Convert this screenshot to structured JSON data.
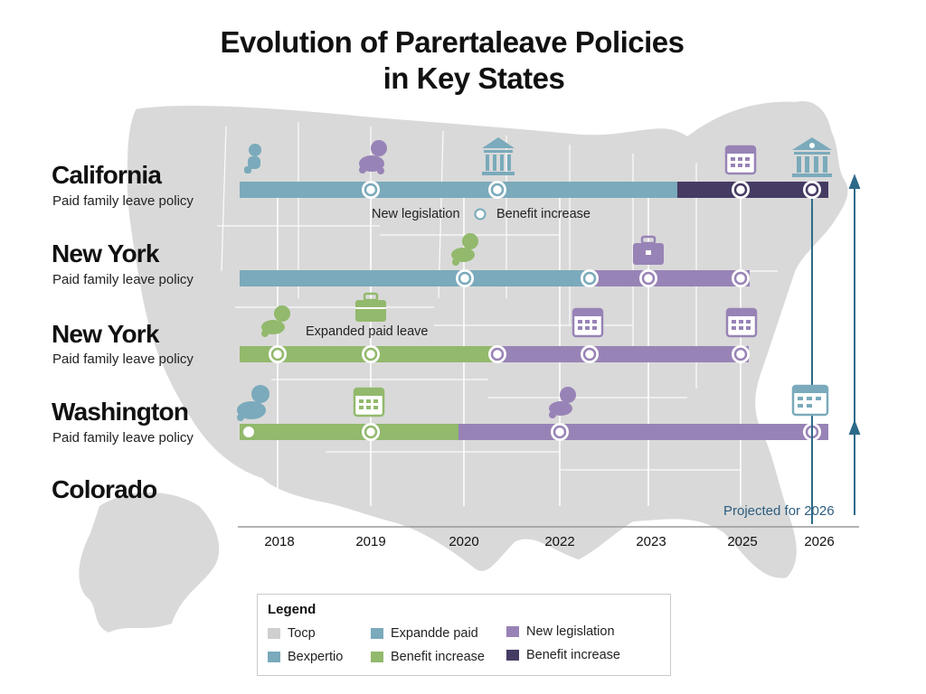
{
  "title": {
    "line1": "Evolution of Parertaleave Policies",
    "line2": "in Key States"
  },
  "states": [
    {
      "name": "California",
      "subtitle": "Paid family leave policy"
    },
    {
      "name": "New York",
      "subtitle": "Paid family leave policy"
    },
    {
      "name": "New York",
      "subtitle": "Paid family leave policy"
    },
    {
      "name": "Washington",
      "subtitle": "Paid family leave policy"
    },
    {
      "name": "Colorado"
    }
  ],
  "annotations": {
    "new_legislation": "New legislation",
    "benefit_increase": "Benefit increase",
    "expanded_paid_leave": "Expanded paid leave"
  },
  "timeline": {
    "years": [
      "2018",
      "2019",
      "2020",
      "2022",
      "2023",
      "2025",
      "2026"
    ],
    "projected_label": "Projected for 2026"
  },
  "legend": {
    "title": "Legend",
    "items": [
      {
        "label": "Tocp",
        "color": "#cfcfcf"
      },
      {
        "label": "Bexpertio",
        "color": "#7aaabb"
      },
      {
        "label": "Expandde paid",
        "color": "#7aaabb"
      },
      {
        "label": "Benefit increase",
        "color": "#92b96c"
      },
      {
        "label": "New legislation",
        "color": "#9883b6"
      },
      {
        "label": "Benefit increase",
        "color": "#463b63"
      }
    ]
  },
  "colors": {
    "teal": "#7aaabb",
    "green": "#92b96c",
    "purple": "#9883b6",
    "dark_purple": "#463b63",
    "arrow": "#2d6a8a",
    "map": "#d9d9d9"
  },
  "icons": [
    "baby-icon",
    "capitol-building-icon",
    "calendar-icon",
    "briefcase-icon"
  ]
}
